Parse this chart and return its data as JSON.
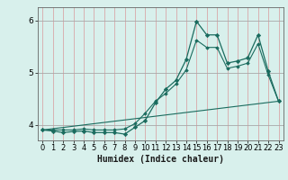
{
  "title": "",
  "xlabel": "Humidex (Indice chaleur)",
  "ylabel": "",
  "bg_color": "#d8f0ec",
  "line_color": "#1a6b5e",
  "grid_h_color": "#a8a8a8",
  "grid_v_color": "#d8a8a8",
  "xlim": [
    -0.5,
    23.5
  ],
  "ylim": [
    3.7,
    6.25
  ],
  "yticks": [
    4,
    5,
    6
  ],
  "xticks": [
    0,
    1,
    2,
    3,
    4,
    5,
    6,
    7,
    8,
    9,
    10,
    11,
    12,
    13,
    14,
    15,
    16,
    17,
    18,
    19,
    20,
    21,
    22,
    23
  ],
  "line1_x": [
    0,
    1,
    2,
    3,
    4,
    5,
    6,
    7,
    8,
    9,
    10,
    11,
    12,
    13,
    14,
    15,
    16,
    17,
    18,
    19,
    20,
    21,
    22,
    23
  ],
  "line1_y": [
    3.9,
    3.88,
    3.85,
    3.87,
    3.88,
    3.85,
    3.85,
    3.85,
    3.82,
    3.95,
    4.08,
    4.42,
    4.68,
    4.85,
    5.25,
    5.98,
    5.72,
    5.72,
    5.18,
    5.22,
    5.28,
    5.72,
    5.02,
    4.45
  ],
  "line2_x": [
    0,
    1,
    2,
    3,
    4,
    5,
    6,
    7,
    8,
    9,
    10,
    11,
    12,
    13,
    14,
    15,
    16,
    17,
    18,
    19,
    20,
    21,
    22,
    23
  ],
  "line2_y": [
    3.9,
    3.9,
    3.9,
    3.9,
    3.92,
    3.9,
    3.9,
    3.9,
    3.92,
    4.02,
    4.22,
    4.45,
    4.6,
    4.78,
    5.05,
    5.62,
    5.48,
    5.48,
    5.08,
    5.12,
    5.18,
    5.55,
    4.95,
    4.45
  ],
  "line3_x": [
    0,
    23
  ],
  "line3_y": [
    3.9,
    4.45
  ]
}
